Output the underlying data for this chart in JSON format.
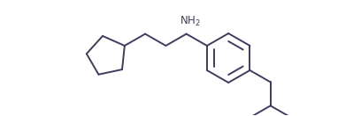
{
  "bg_color": "#ffffff",
  "line_color": "#3d3d5c",
  "text_color": "#3d3d5c",
  "nh2_label": "NH$_2$",
  "line_width": 1.4,
  "figsize": [
    3.82,
    1.32
  ],
  "dpi": 100,
  "xlim": [
    0,
    10
  ],
  "ylim": [
    0,
    3.5
  ]
}
